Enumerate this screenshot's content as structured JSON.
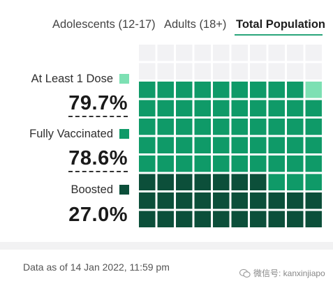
{
  "tabs": [
    {
      "label": "Adolescents (12-17)"
    },
    {
      "label": "Adults (18+)"
    },
    {
      "label": "Total Population",
      "active": true
    }
  ],
  "stats": [
    {
      "label": "At Least 1 Dose",
      "value": "79.7%",
      "color": "#7de0b3"
    },
    {
      "label": "Fully Vaccinated",
      "value": "78.6%",
      "color": "#0f9a68"
    },
    {
      "label": "Boosted",
      "value": "27.0%",
      "color": "#0c4f3a"
    }
  ],
  "colors": {
    "empty": "#f2f2f4",
    "one_dose": "#7de0b3",
    "full": "#0f9a68",
    "boosted": "#0c4f3a",
    "accent": "#2aa57a"
  },
  "waffle": {
    "cols": 10,
    "rows": 10,
    "cells_filled_from": "bottom",
    "one_dose_pct": 79.7,
    "full_pct": 78.6,
    "boosted_pct": 27.0
  },
  "footer": {
    "data_as_of": "Data as of 14 Jan 2022, 11:59 pm"
  },
  "watermark": {
    "text": "微信号: kanxinjiapo",
    "icon": "wechat-icon"
  }
}
